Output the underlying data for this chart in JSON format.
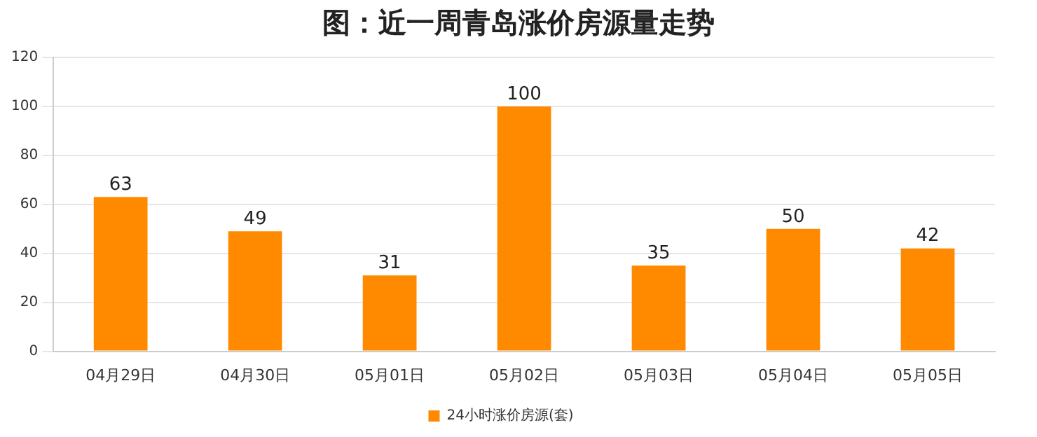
{
  "chart_data": {
    "type": "bar",
    "title": "图：近一周青岛涨价房源量走势",
    "categories": [
      "04月29日",
      "04月30日",
      "05月01日",
      "05月02日",
      "05月03日",
      "05月04日",
      "05月05日"
    ],
    "series": [
      {
        "name": "24小时涨价房源(套)",
        "color": "#ff8a00",
        "values": [
          63,
          49,
          31,
          100,
          35,
          50,
          42
        ]
      }
    ],
    "ylim": [
      0,
      120
    ],
    "yticks": [
      0,
      20,
      40,
      60,
      80,
      100,
      120
    ],
    "grid": "y",
    "legend": "bottom",
    "data_labels": true
  }
}
